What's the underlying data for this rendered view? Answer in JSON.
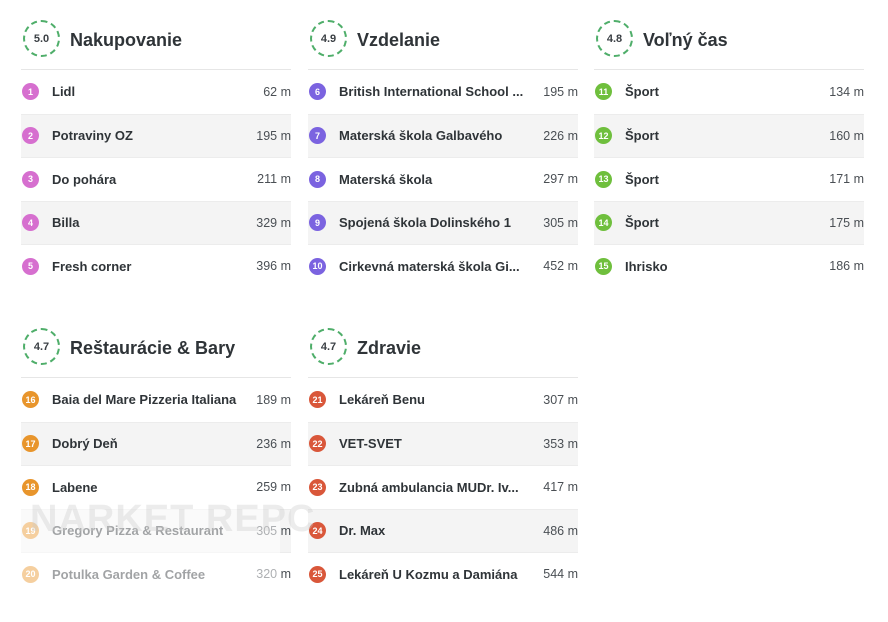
{
  "sections": [
    {
      "title": "Nakupovanie",
      "score": "5.0",
      "color": "#d66fcf",
      "items": [
        {
          "num": "1",
          "name": "Lidl",
          "dist": "62 m"
        },
        {
          "num": "2",
          "name": "Potraviny OZ",
          "dist": "195 m"
        },
        {
          "num": "3",
          "name": "Do pohára",
          "dist": "211 m"
        },
        {
          "num": "4",
          "name": "Billa",
          "dist": "329 m"
        },
        {
          "num": "5",
          "name": "Fresh corner",
          "dist": "396 m"
        }
      ]
    },
    {
      "title": "Vzdelanie",
      "score": "4.9",
      "color": "#7b63e0",
      "items": [
        {
          "num": "6",
          "name": "British International School ...",
          "dist": "195 m"
        },
        {
          "num": "7",
          "name": "Materská škola Galbavého",
          "dist": "226 m"
        },
        {
          "num": "8",
          "name": "Materská škola",
          "dist": "297 m"
        },
        {
          "num": "9",
          "name": "Spojená škola Dolinského 1",
          "dist": "305 m"
        },
        {
          "num": "10",
          "name": "Cirkevná materská škola Gi...",
          "dist": "452 m"
        }
      ]
    },
    {
      "title": "Voľný čas",
      "score": "4.8",
      "color": "#6fbf3d",
      "items": [
        {
          "num": "11",
          "name": "Šport",
          "dist": "134 m"
        },
        {
          "num": "12",
          "name": "Šport",
          "dist": "160 m"
        },
        {
          "num": "13",
          "name": "Šport",
          "dist": "171 m"
        },
        {
          "num": "14",
          "name": "Šport",
          "dist": "175 m"
        },
        {
          "num": "15",
          "name": "Ihrisko",
          "dist": "186 m"
        }
      ]
    },
    {
      "title": "Reštaurácie & Bary",
      "score": "4.7",
      "color": "#e8952c",
      "items": [
        {
          "num": "16",
          "name": "Baia del Mare Pizzeria Italiana",
          "dist": "189 m"
        },
        {
          "num": "17",
          "name": "Dobrý Deň",
          "dist": "236 m"
        },
        {
          "num": "18",
          "name": "Labene",
          "dist": "259 m"
        },
        {
          "num": "19",
          "name": "Gregory Pizza & Restaurant",
          "dist": "305 m"
        },
        {
          "num": "20",
          "name": "Potulka Garden & Coffee",
          "dist": "320 m"
        }
      ]
    },
    {
      "title": "Zdravie",
      "score": "4.7",
      "color": "#d9573a",
      "items": [
        {
          "num": "21",
          "name": "Lekáreň Benu",
          "dist": "307 m"
        },
        {
          "num": "22",
          "name": "VET-SVET",
          "dist": "353 m"
        },
        {
          "num": "23",
          "name": "Zubná ambulancia MUDr. Iv...",
          "dist": "417 m"
        },
        {
          "num": "24",
          "name": "Dr. Max",
          "dist": "486 m"
        },
        {
          "num": "25",
          "name": "Lekáreň U Kozmu a Damiána",
          "dist": "544 m"
        }
      ]
    }
  ],
  "watermark": "NARKET REPC"
}
